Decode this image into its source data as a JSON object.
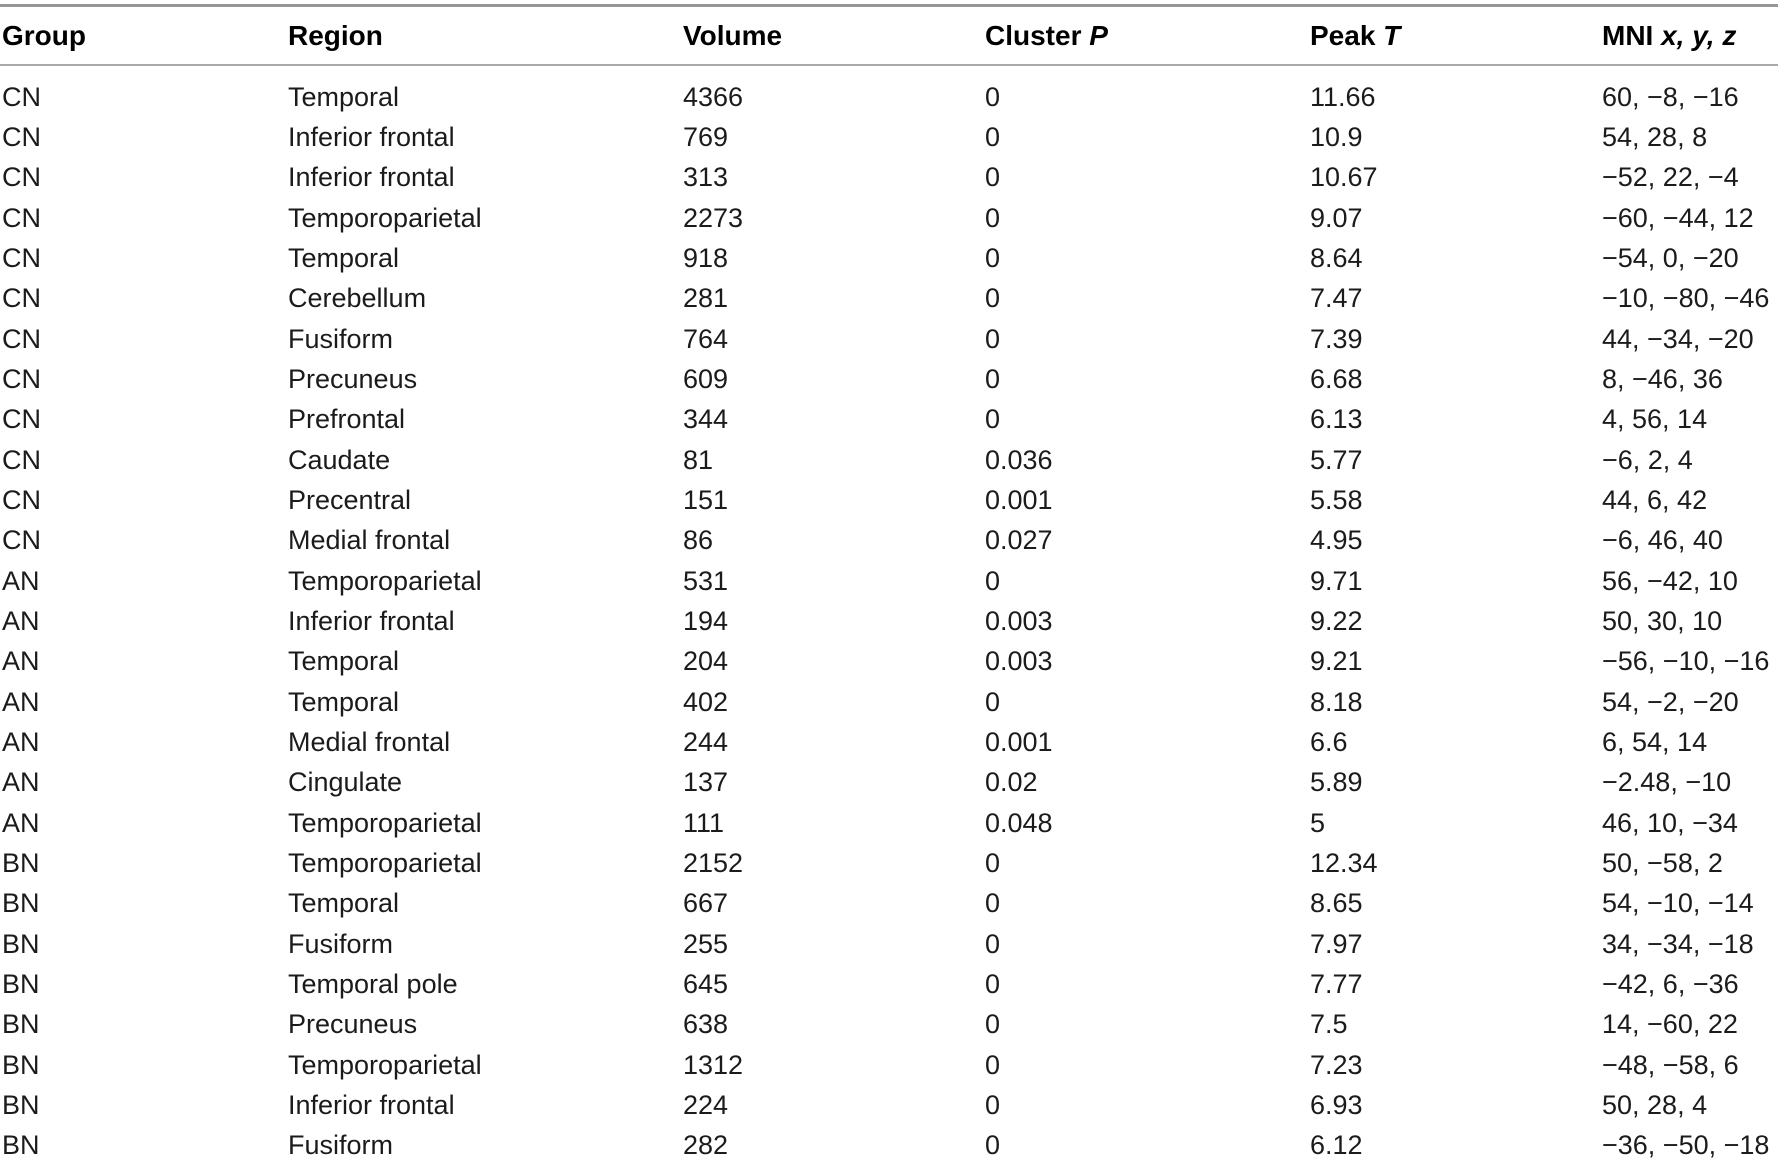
{
  "colors": {
    "background": "#ffffff",
    "text": "#1b1b1b",
    "header_text": "#000000",
    "rule": "#969696",
    "rule_light": "#a9a9a9"
  },
  "table": {
    "header": [
      {
        "text": "Group",
        "italic": ""
      },
      {
        "text": "Region",
        "italic": ""
      },
      {
        "text": "Volume",
        "italic": ""
      },
      {
        "text": "Cluster ",
        "italic": "P"
      },
      {
        "text": "Peak ",
        "italic": "T"
      },
      {
        "text": "MNI ",
        "italic": "x, y, z"
      }
    ],
    "column_keys": [
      "group",
      "region",
      "volume",
      "cluster_p",
      "peak_t",
      "mni_xyz"
    ],
    "rows": [
      [
        "CN",
        "Temporal",
        "4366",
        "0",
        "11.66",
        "60, −8, −16"
      ],
      [
        "CN",
        "Inferior frontal",
        "769",
        "0",
        "10.9",
        "54, 28, 8"
      ],
      [
        "CN",
        "Inferior frontal",
        "313",
        "0",
        "10.67",
        "−52, 22, −4"
      ],
      [
        "CN",
        "Temporoparietal",
        "2273",
        "0",
        "9.07",
        "−60, −44, 12"
      ],
      [
        "CN",
        "Temporal",
        "918",
        "0",
        "8.64",
        "−54, 0, −20"
      ],
      [
        "CN",
        "Cerebellum",
        "281",
        "0",
        "7.47",
        "−10, −80, −46"
      ],
      [
        "CN",
        "Fusiform",
        "764",
        "0",
        "7.39",
        "44, −34, −20"
      ],
      [
        "CN",
        "Precuneus",
        "609",
        "0",
        "6.68",
        "8, −46, 36"
      ],
      [
        "CN",
        "Prefrontal",
        "344",
        "0",
        "6.13",
        "4, 56, 14"
      ],
      [
        "CN",
        "Caudate",
        "81",
        "0.036",
        "5.77",
        "−6, 2, 4"
      ],
      [
        "CN",
        "Precentral",
        "151",
        "0.001",
        "5.58",
        "44, 6, 42"
      ],
      [
        "CN",
        "Medial frontal",
        "86",
        "0.027",
        "4.95",
        "−6, 46, 40"
      ],
      [
        "AN",
        "Temporoparietal",
        "531",
        "0",
        "9.71",
        "56, −42, 10"
      ],
      [
        "AN",
        "Inferior frontal",
        "194",
        "0.003",
        "9.22",
        "50, 30, 10"
      ],
      [
        "AN",
        "Temporal",
        "204",
        "0.003",
        "9.21",
        "−56, −10, −16"
      ],
      [
        "AN",
        "Temporal",
        "402",
        "0",
        "8.18",
        "54, −2, −20"
      ],
      [
        "AN",
        "Medial frontal",
        "244",
        "0.001",
        "6.6",
        "6, 54, 14"
      ],
      [
        "AN",
        "Cingulate",
        "137",
        "0.02",
        "5.89",
        "−2.48, −10"
      ],
      [
        "AN",
        "Temporoparietal",
        "111",
        "0.048",
        "5",
        "46, 10, −34"
      ],
      [
        "BN",
        "Temporoparietal",
        "2152",
        "0",
        "12.34",
        "50, −58, 2"
      ],
      [
        "BN",
        "Temporal",
        "667",
        "0",
        "8.65",
        "54, −10, −14"
      ],
      [
        "BN",
        "Fusiform",
        "255",
        "0",
        "7.97",
        "34, −34, −18"
      ],
      [
        "BN",
        "Temporal pole",
        "645",
        "0",
        "7.77",
        "−42, 6, −36"
      ],
      [
        "BN",
        "Precuneus",
        "638",
        "0",
        "7.5",
        "14, −60, 22"
      ],
      [
        "BN",
        "Temporoparietal",
        "1312",
        "0",
        "7.23",
        "−48, −58, 6"
      ],
      [
        "BN",
        "Inferior frontal",
        "224",
        "0",
        "6.93",
        "50, 28, 4"
      ],
      [
        "BN",
        "Fusiform",
        "282",
        "0",
        "6.12",
        "−36, −50, −18"
      ]
    ]
  }
}
